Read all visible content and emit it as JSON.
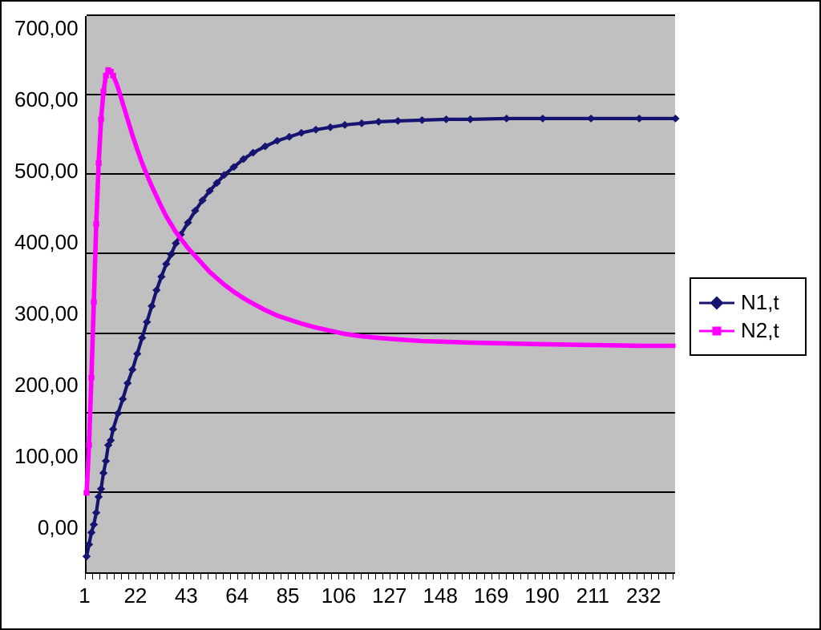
{
  "chart": {
    "type": "line",
    "background_color": "#c0c0c0",
    "grid_color": "#000000",
    "ylim": [
      0,
      700
    ],
    "ytick_step": 100,
    "ytick_labels": [
      "0,00",
      "100,00",
      "200,00",
      "300,00",
      "400,00",
      "500,00",
      "600,00",
      "700,00"
    ],
    "x_min": 1,
    "x_max": 245,
    "x_tick_every": 1,
    "x_labels": [
      1,
      22,
      43,
      64,
      85,
      106,
      127,
      148,
      169,
      190,
      211,
      232
    ],
    "x_label_fontsize": 26,
    "y_label_fontsize": 26,
    "series": [
      {
        "name": "N1,t",
        "color": "#161470",
        "line_width": 3,
        "marker": "diamond",
        "marker_size": 10,
        "data": [
          [
            1,
            20
          ],
          [
            2,
            35
          ],
          [
            3,
            50
          ],
          [
            4,
            60
          ],
          [
            5,
            75
          ],
          [
            6,
            95
          ],
          [
            7,
            105
          ],
          [
            8,
            125
          ],
          [
            9,
            140
          ],
          [
            10,
            160
          ],
          [
            11,
            166
          ],
          [
            12,
            180
          ],
          [
            14,
            200
          ],
          [
            16,
            218
          ],
          [
            18,
            238
          ],
          [
            20,
            255
          ],
          [
            22,
            275
          ],
          [
            24,
            295
          ],
          [
            26,
            315
          ],
          [
            28,
            335
          ],
          [
            30,
            355
          ],
          [
            32,
            372
          ],
          [
            34,
            388
          ],
          [
            36,
            400
          ],
          [
            38,
            414
          ],
          [
            40,
            425
          ],
          [
            43,
            440
          ],
          [
            46,
            455
          ],
          [
            49,
            468
          ],
          [
            52,
            480
          ],
          [
            55,
            490
          ],
          [
            58,
            500
          ],
          [
            62,
            510
          ],
          [
            66,
            520
          ],
          [
            70,
            528
          ],
          [
            75,
            536
          ],
          [
            80,
            543
          ],
          [
            85,
            548
          ],
          [
            90,
            553
          ],
          [
            96,
            557
          ],
          [
            102,
            560
          ],
          [
            108,
            563
          ],
          [
            115,
            565
          ],
          [
            122,
            567
          ],
          [
            130,
            568
          ],
          [
            140,
            569
          ],
          [
            150,
            570
          ],
          [
            160,
            570
          ],
          [
            175,
            571
          ],
          [
            190,
            571
          ],
          [
            210,
            571
          ],
          [
            230,
            571
          ],
          [
            245,
            571
          ]
        ]
      },
      {
        "name": "N2,t",
        "color": "#ff00ff",
        "line_width": 4,
        "marker": "square",
        "marker_size": 10,
        "marker_until_x": 12,
        "data": [
          [
            1,
            100
          ],
          [
            2,
            160
          ],
          [
            3,
            245
          ],
          [
            4,
            340
          ],
          [
            5,
            438
          ],
          [
            6,
            515
          ],
          [
            7,
            570
          ],
          [
            8,
            605
          ],
          [
            9,
            625
          ],
          [
            10,
            632
          ],
          [
            11,
            630
          ],
          [
            12,
            625
          ],
          [
            13,
            618
          ],
          [
            14,
            610
          ],
          [
            15,
            600
          ],
          [
            16,
            590
          ],
          [
            17,
            580
          ],
          [
            18,
            570
          ],
          [
            19,
            560
          ],
          [
            20,
            550
          ],
          [
            22,
            532
          ],
          [
            24,
            515
          ],
          [
            26,
            500
          ],
          [
            28,
            486
          ],
          [
            30,
            473
          ],
          [
            32,
            460
          ],
          [
            34,
            448
          ],
          [
            36,
            438
          ],
          [
            38,
            428
          ],
          [
            40,
            420
          ],
          [
            43,
            408
          ],
          [
            46,
            398
          ],
          [
            49,
            388
          ],
          [
            52,
            378
          ],
          [
            55,
            370
          ],
          [
            58,
            362
          ],
          [
            62,
            353
          ],
          [
            66,
            345
          ],
          [
            70,
            338
          ],
          [
            75,
            330
          ],
          [
            80,
            323
          ],
          [
            85,
            318
          ],
          [
            90,
            313
          ],
          [
            96,
            308
          ],
          [
            102,
            304
          ],
          [
            108,
            300
          ],
          [
            115,
            297
          ],
          [
            122,
            295
          ],
          [
            130,
            293
          ],
          [
            140,
            291
          ],
          [
            150,
            290
          ],
          [
            160,
            289
          ],
          [
            175,
            288
          ],
          [
            190,
            287
          ],
          [
            210,
            286
          ],
          [
            230,
            285
          ],
          [
            245,
            285
          ]
        ]
      }
    ],
    "legend": {
      "position": "right-middle",
      "border_color": "#000000",
      "background_color": "#ffffff",
      "fontsize": 26,
      "items": [
        {
          "label": "N1,t",
          "color": "#161470",
          "marker": "diamond"
        },
        {
          "label": "N2,t",
          "color": "#ff00ff",
          "marker": "square"
        }
      ]
    }
  }
}
